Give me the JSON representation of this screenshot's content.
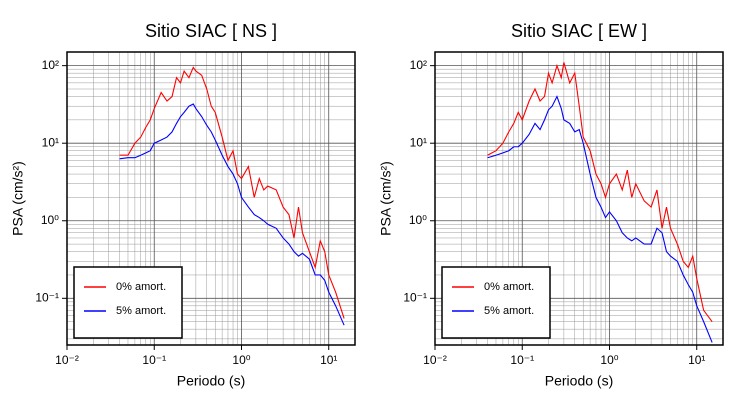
{
  "chart_data": [
    {
      "type": "line",
      "title": "Sitio SIAC [ NS ]",
      "xlabel": "Periodo (s)",
      "ylabel": "PSA (cm/s²)",
      "xscale": "log",
      "yscale": "log",
      "grid": true,
      "legend": "lower left",
      "xlim": [
        0.01,
        20
      ],
      "ylim": [
        0.025,
        150
      ],
      "xticks": [
        {
          "value": 0.01,
          "label": "10⁻²"
        },
        {
          "value": 0.1,
          "label": "10⁻¹"
        },
        {
          "value": 1,
          "label": "10⁰"
        },
        {
          "value": 10,
          "label": "10¹"
        }
      ],
      "yticks": [
        {
          "value": 0.1,
          "label": "10⁻¹"
        },
        {
          "value": 1,
          "label": "10⁰"
        },
        {
          "value": 10,
          "label": "10¹"
        },
        {
          "value": 100,
          "label": "10²"
        }
      ],
      "x": [
        0.04,
        0.05,
        0.06,
        0.07,
        0.08,
        0.09,
        0.1,
        0.12,
        0.14,
        0.16,
        0.18,
        0.2,
        0.22,
        0.25,
        0.28,
        0.3,
        0.35,
        0.4,
        0.45,
        0.5,
        0.6,
        0.7,
        0.8,
        0.9,
        1,
        1.2,
        1.4,
        1.6,
        1.8,
        2,
        2.5,
        3,
        3.5,
        4,
        4.5,
        5,
        6,
        7,
        8,
        9,
        10,
        12,
        15
      ],
      "series": [
        {
          "name": "0% amort.",
          "color": "#ff0000",
          "values": [
            7,
            7,
            10,
            12,
            16,
            20,
            28,
            45,
            35,
            40,
            70,
            60,
            85,
            70,
            95,
            85,
            75,
            50,
            30,
            25,
            12,
            6,
            8,
            4,
            3.5,
            5,
            2,
            3.5,
            2.5,
            2.8,
            2.5,
            1.5,
            1.2,
            0.6,
            1.5,
            0.7,
            0.4,
            0.25,
            0.55,
            0.4,
            0.2,
            0.12,
            0.055
          ]
        },
        {
          "name": "5% amort.",
          "color": "#0000ff",
          "values": [
            6.3,
            6.5,
            6.5,
            7,
            7.5,
            8,
            10,
            11,
            12,
            14,
            18,
            22,
            25,
            30,
            32,
            28,
            22,
            17,
            14,
            11,
            7,
            5,
            4,
            3,
            2,
            1.5,
            1.2,
            1.1,
            1.0,
            0.9,
            0.8,
            0.6,
            0.5,
            0.4,
            0.35,
            0.38,
            0.32,
            0.2,
            0.2,
            0.17,
            0.12,
            0.08,
            0.045
          ]
        }
      ]
    },
    {
      "type": "line",
      "title": "Sitio SIAC [ EW ]",
      "xlabel": "Periodo (s)",
      "ylabel": "PSA (cm/s²)",
      "xscale": "log",
      "yscale": "log",
      "grid": true,
      "legend": "lower left",
      "xlim": [
        0.01,
        20
      ],
      "ylim": [
        0.025,
        150
      ],
      "xticks": [
        {
          "value": 0.01,
          "label": "10⁻²"
        },
        {
          "value": 0.1,
          "label": "10⁻¹"
        },
        {
          "value": 1,
          "label": "10⁰"
        },
        {
          "value": 10,
          "label": "10¹"
        }
      ],
      "yticks": [
        {
          "value": 0.1,
          "label": "10⁻¹"
        },
        {
          "value": 1,
          "label": "10⁰"
        },
        {
          "value": 10,
          "label": "10¹"
        },
        {
          "value": 100,
          "label": "10²"
        }
      ],
      "x": [
        0.04,
        0.05,
        0.06,
        0.07,
        0.08,
        0.09,
        0.1,
        0.12,
        0.14,
        0.16,
        0.18,
        0.2,
        0.22,
        0.25,
        0.28,
        0.3,
        0.35,
        0.4,
        0.45,
        0.5,
        0.6,
        0.7,
        0.8,
        0.9,
        1,
        1.2,
        1.4,
        1.6,
        1.8,
        2,
        2.5,
        3,
        3.5,
        4,
        4.5,
        5,
        6,
        7,
        8,
        9,
        10,
        12,
        15
      ],
      "series": [
        {
          "name": "0% amort.",
          "color": "#ff0000",
          "values": [
            7,
            8,
            10,
            14,
            18,
            25,
            20,
            35,
            50,
            35,
            40,
            80,
            60,
            100,
            70,
            110,
            60,
            80,
            30,
            12,
            8,
            4,
            3,
            2,
            3,
            4,
            2.5,
            4.5,
            2,
            3,
            1.8,
            1.5,
            2.5,
            0.8,
            1.5,
            0.8,
            0.5,
            0.3,
            0.25,
            0.35,
            0.18,
            0.07,
            0.05
          ]
        },
        {
          "name": "5% amort.",
          "color": "#0000ff",
          "values": [
            6.5,
            7,
            7.5,
            8,
            9,
            9,
            10,
            13,
            18,
            15,
            20,
            27,
            30,
            40,
            28,
            20,
            18,
            14,
            15,
            10,
            4,
            2,
            1.5,
            1.1,
            1.3,
            1.0,
            0.7,
            0.6,
            0.55,
            0.6,
            0.5,
            0.5,
            0.8,
            0.7,
            0.4,
            0.35,
            0.3,
            0.2,
            0.15,
            0.12,
            0.08,
            0.05,
            0.027
          ]
        }
      ]
    }
  ]
}
